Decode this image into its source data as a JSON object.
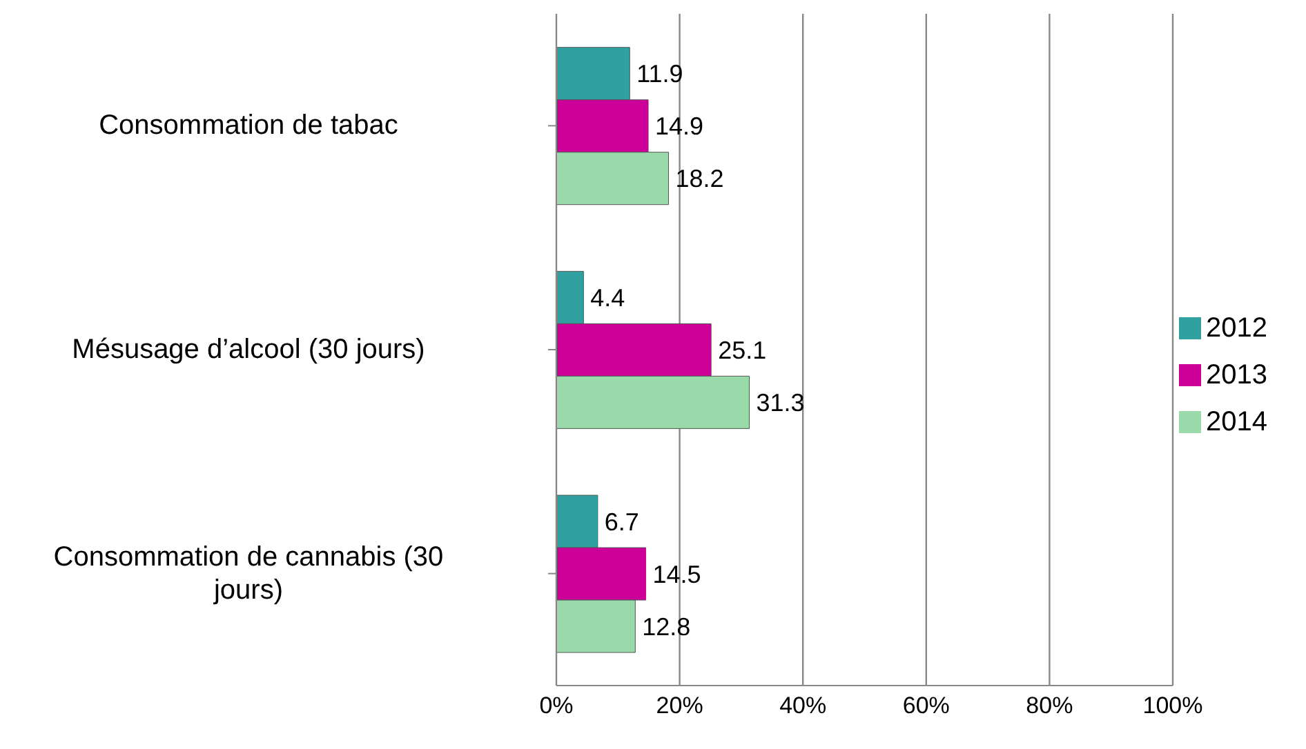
{
  "chart_data": {
    "type": "bar",
    "orientation": "horizontal",
    "categories": [
      "Consommation de tabac",
      "Mésusage d’alcool (30 jours)",
      "Consommation de cannabis (30 jours)"
    ],
    "series": [
      {
        "name": "2012",
        "color": "#31a0a0",
        "values": [
          11.9,
          4.4,
          6.7
        ]
      },
      {
        "name": "2013",
        "color": "#cc0099",
        "values": [
          14.9,
          25.1,
          14.5
        ]
      },
      {
        "name": "2014",
        "color": "#99d9aa",
        "values": [
          18.2,
          31.3,
          12.8
        ]
      }
    ],
    "xlim": [
      0,
      100
    ],
    "xticks": [
      {
        "value": 0,
        "label": "0%"
      },
      {
        "value": 20,
        "label": "20%"
      },
      {
        "value": 40,
        "label": "40%"
      },
      {
        "value": 60,
        "label": "60%"
      },
      {
        "value": 80,
        "label": "80%"
      },
      {
        "value": 100,
        "label": "100%"
      }
    ],
    "grid": "x",
    "legend": "right",
    "data_labels": true
  }
}
